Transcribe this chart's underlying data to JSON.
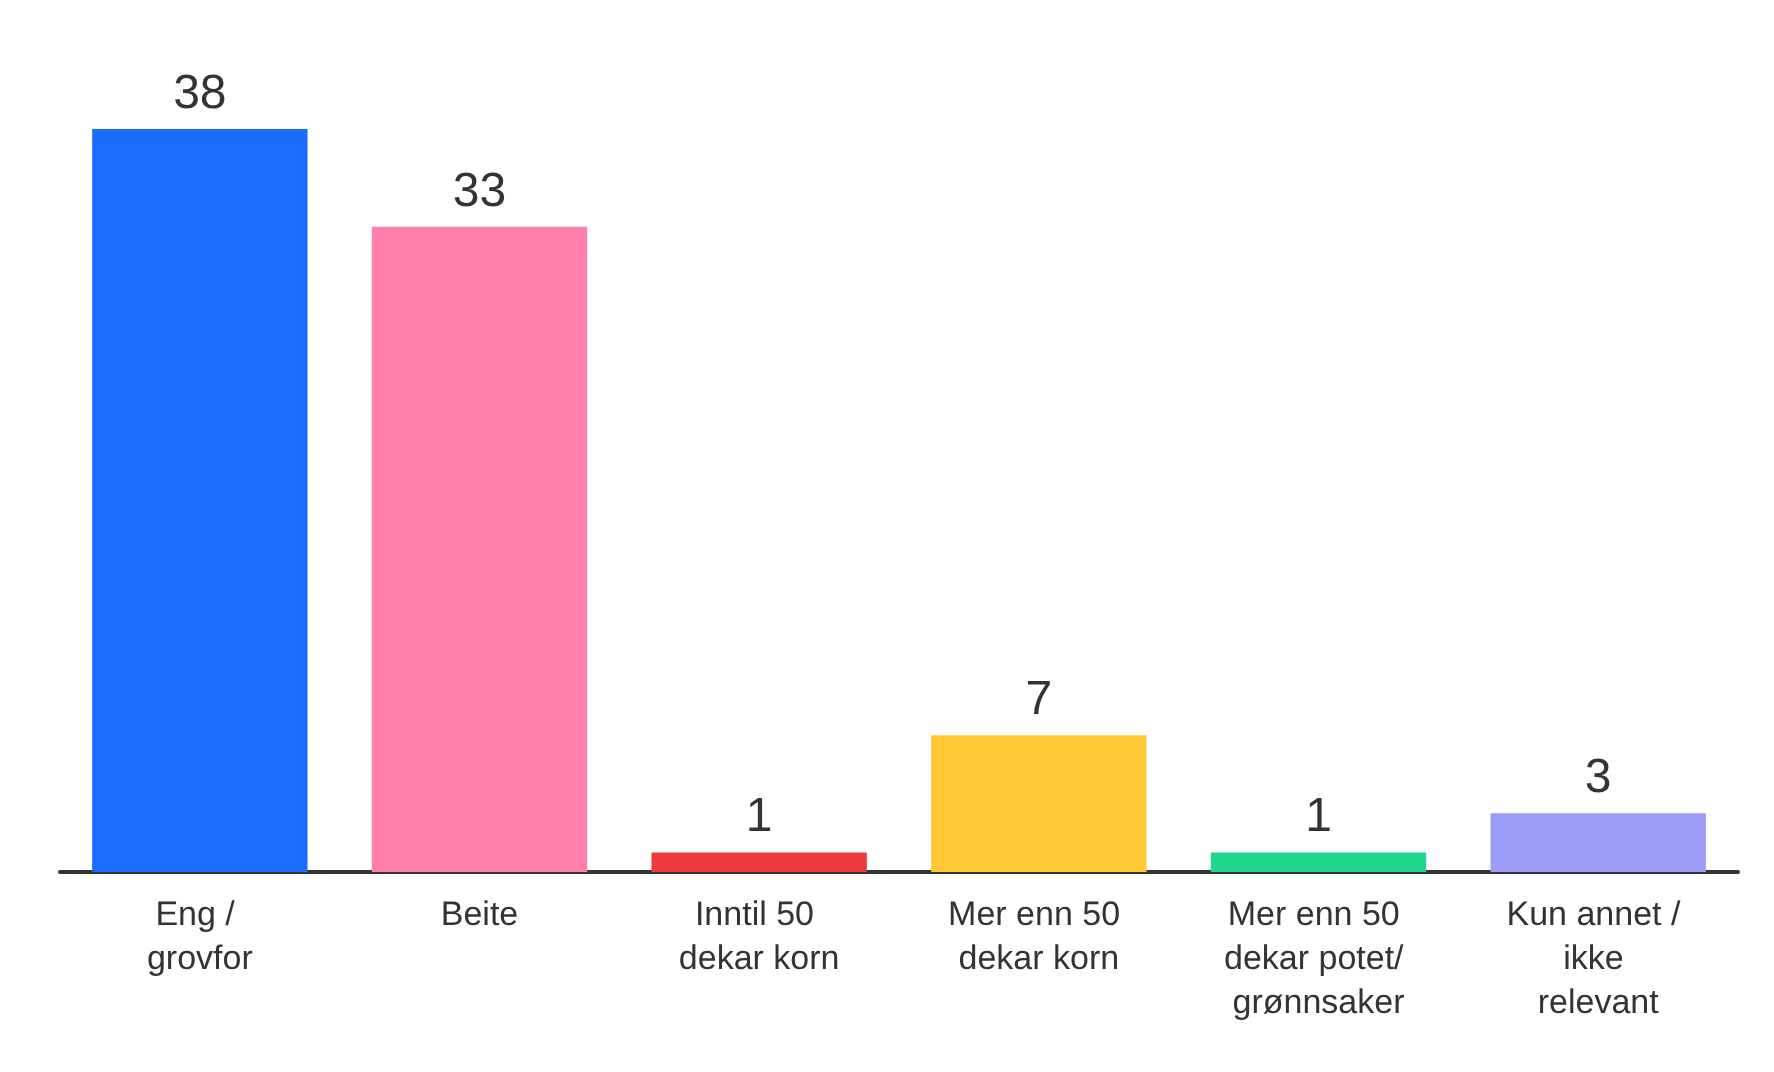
{
  "chart_data": {
    "type": "bar",
    "categories": [
      "Eng / grovfor",
      "Beite",
      "Inntil 50 dekar korn",
      "Mer enn 50 dekar korn",
      "Mer enn 50 dekar potet/ grønnsaker",
      "Kun annet / ikke relevant"
    ],
    "values": [
      38,
      33,
      1,
      7,
      1,
      3
    ],
    "colors": [
      "#1a6cff",
      "#ff7fa8",
      "#ee3a3a",
      "#ffc832",
      "#1fd68a",
      "#9a9cf5"
    ],
    "data_labels": true
  }
}
